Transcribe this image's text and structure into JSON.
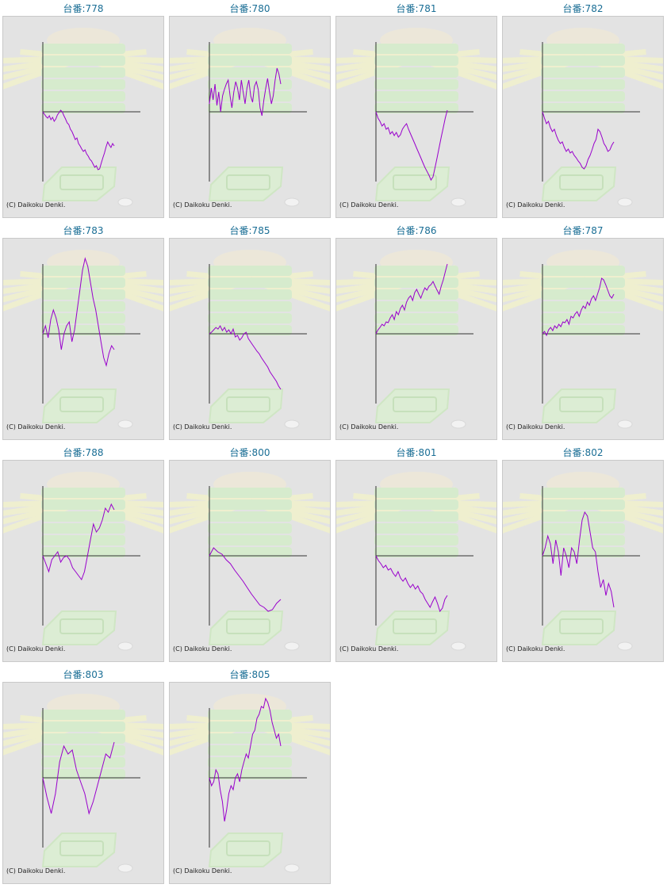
{
  "colors": {
    "title": "#1a6e95",
    "line": "#9900cc",
    "axis": "#333333",
    "panel_bg": "#e3e3e3"
  },
  "chart_data": [
    {
      "type": "line",
      "title": "台番:778",
      "copyright": "(C) Daikoku Denki.",
      "y": [
        0,
        -3,
        -6,
        -8,
        -5,
        -10,
        -7,
        -12,
        -9,
        -4,
        -1,
        2,
        0,
        -5,
        -9,
        -14,
        -16,
        -22,
        -25,
        -30,
        -35,
        -33,
        -40,
        -43,
        -47,
        -50,
        -48,
        -53,
        -56,
        -60,
        -62,
        -66,
        -70,
        -68,
        -73,
        -72,
        -65,
        -58,
        -52,
        -44,
        -38,
        -42,
        -45,
        -40,
        -43
      ]
    },
    {
      "type": "line",
      "title": "台番:780",
      "copyright": "(C) Daikoku Denki.",
      "y": [
        10,
        30,
        15,
        35,
        8,
        25,
        0,
        20,
        28,
        35,
        40,
        20,
        5,
        25,
        38,
        30,
        15,
        40,
        25,
        10,
        30,
        40,
        20,
        12,
        32,
        38,
        28,
        5,
        -5,
        15,
        30,
        42,
        25,
        10,
        20,
        40,
        55,
        48,
        35
      ]
    },
    {
      "type": "line",
      "title": "台番:781",
      "copyright": "(C) Daikoku Denki.",
      "y": [
        0,
        -8,
        -12,
        -18,
        -15,
        -22,
        -20,
        -28,
        -25,
        -30,
        -26,
        -32,
        -29,
        -22,
        -18,
        -15,
        -22,
        -28,
        -34,
        -40,
        -46,
        -52,
        -58,
        -64,
        -70,
        -75,
        -80,
        -86,
        -82,
        -70,
        -58,
        -45,
        -32,
        -20,
        -8,
        2
      ]
    },
    {
      "type": "line",
      "title": "台番:782",
      "copyright": "(C) Daikoku Denki.",
      "y": [
        0,
        -8,
        -15,
        -12,
        -20,
        -25,
        -22,
        -30,
        -36,
        -40,
        -38,
        -45,
        -50,
        -47,
        -52,
        -50,
        -55,
        -58,
        -62,
        -65,
        -70,
        -72,
        -68,
        -60,
        -55,
        -48,
        -40,
        -35,
        -22,
        -25,
        -32,
        -40,
        -44,
        -50,
        -48,
        -42,
        -38
      ]
    },
    {
      "type": "line",
      "title": "台番:783",
      "copyright": "(C) Daikoku Denki.",
      "y": [
        0,
        10,
        -5,
        18,
        30,
        20,
        5,
        -20,
        0,
        10,
        15,
        -10,
        5,
        30,
        55,
        80,
        95,
        85,
        65,
        45,
        30,
        10,
        -10,
        -30,
        -40,
        -25,
        -15,
        -20
      ]
    },
    {
      "type": "line",
      "title": "台番:785",
      "copyright": "(C) Daikoku Denki.",
      "y": [
        0,
        2,
        5,
        8,
        6,
        10,
        4,
        8,
        2,
        5,
        0,
        6,
        -4,
        -2,
        -8,
        -5,
        0,
        2,
        -6,
        -10,
        -14,
        -18,
        -22,
        -25,
        -30,
        -34,
        -38,
        -42,
        -48,
        -52,
        -56,
        -60,
        -66,
        -70
      ]
    },
    {
      "type": "line",
      "title": "台番:786",
      "copyright": "(C) Daikoku Denki.",
      "y": [
        0,
        5,
        8,
        12,
        10,
        15,
        14,
        20,
        24,
        18,
        28,
        24,
        32,
        36,
        30,
        40,
        45,
        48,
        42,
        52,
        56,
        50,
        45,
        52,
        58,
        55,
        60,
        62,
        66,
        60,
        55,
        50,
        60,
        68,
        78,
        88
      ]
    },
    {
      "type": "line",
      "title": "台番:787",
      "copyright": "(C) Daikoku Denki.",
      "y": [
        0,
        3,
        -2,
        5,
        8,
        4,
        10,
        7,
        12,
        9,
        15,
        14,
        18,
        12,
        22,
        20,
        25,
        28,
        22,
        30,
        35,
        32,
        40,
        36,
        44,
        48,
        42,
        50,
        58,
        70,
        68,
        62,
        55,
        48,
        45,
        50
      ]
    },
    {
      "type": "line",
      "title": "台番:788",
      "copyright": "(C) Daikoku Denki.",
      "y": [
        0,
        -10,
        -20,
        -5,
        0,
        5,
        -8,
        -2,
        0,
        -5,
        -15,
        -20,
        -25,
        -30,
        -20,
        0,
        20,
        40,
        30,
        35,
        45,
        60,
        55,
        65,
        58
      ]
    },
    {
      "type": "line",
      "title": "台番:800",
      "copyright": "(C) Daikoku Denki.",
      "y": [
        0,
        10,
        5,
        2,
        -5,
        -10,
        -18,
        -25,
        -32,
        -40,
        -48,
        -55,
        -62,
        -65,
        -70,
        -68,
        -60,
        -55
      ]
    },
    {
      "type": "line",
      "title": "台番:801",
      "copyright": "(C) Daikoku Denki.",
      "y": [
        0,
        -6,
        -10,
        -15,
        -12,
        -18,
        -16,
        -22,
        -26,
        -20,
        -28,
        -32,
        -28,
        -35,
        -40,
        -36,
        -42,
        -38,
        -45,
        -48,
        -55,
        -60,
        -65,
        -58,
        -52,
        -60,
        -70,
        -66,
        -55,
        -50
      ]
    },
    {
      "type": "line",
      "title": "台番:802",
      "copyright": "(C) Daikoku Denki.",
      "y": [
        0,
        10,
        25,
        15,
        -10,
        20,
        5,
        -25,
        10,
        0,
        -15,
        10,
        5,
        -10,
        20,
        45,
        55,
        50,
        30,
        10,
        5,
        -20,
        -40,
        -30,
        -50,
        -35,
        -45,
        -65
      ]
    },
    {
      "type": "line",
      "title": "台番:803",
      "copyright": "(C) Daikoku Denki.",
      "y": [
        0,
        -25,
        -45,
        -20,
        20,
        40,
        30,
        35,
        10,
        -5,
        -20,
        -45,
        -30,
        -10,
        10,
        30,
        25,
        45
      ]
    },
    {
      "type": "line",
      "title": "台番:805",
      "copyright": "(C) Daikoku Denki.",
      "y": [
        0,
        -10,
        -5,
        10,
        5,
        -15,
        -30,
        -55,
        -40,
        -20,
        -10,
        -15,
        0,
        5,
        -5,
        10,
        20,
        30,
        25,
        40,
        55,
        60,
        75,
        80,
        90,
        88,
        100,
        95,
        85,
        70,
        60,
        50,
        55,
        40
      ]
    }
  ]
}
